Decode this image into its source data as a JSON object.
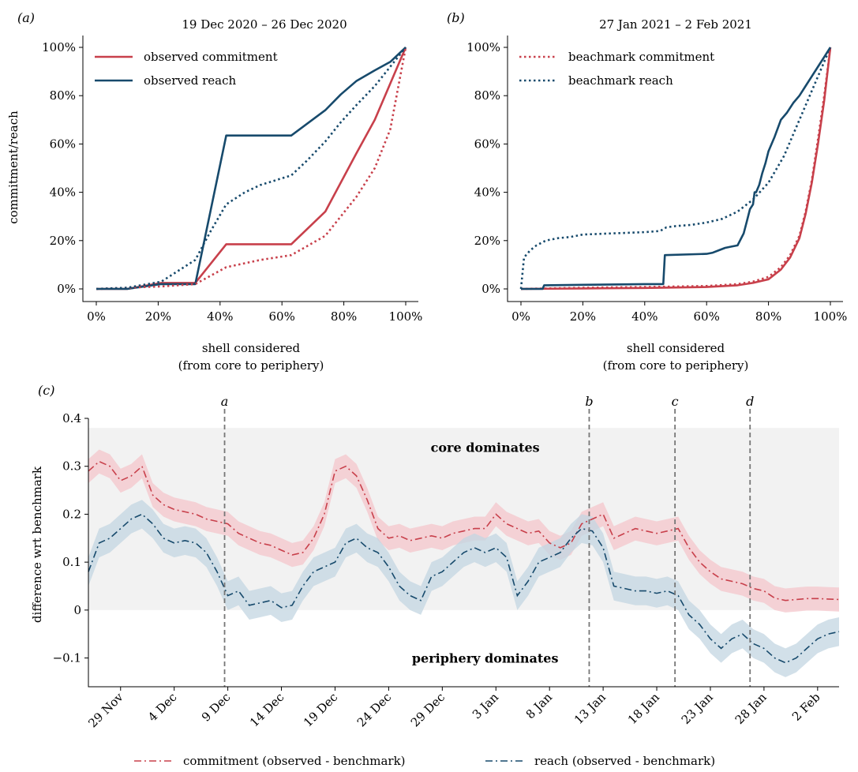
{
  "colors": {
    "commitment": "#c8404b",
    "reach": "#174a6c",
    "commitment_band": "#f4c6cb",
    "reach_band": "#c3d5e2",
    "shade": "#f2f2f2",
    "vline": "#777777"
  },
  "chart_data": [
    {
      "id": "a",
      "type": "line",
      "panel_label": "(a)",
      "title": "19 Dec 2020 – 26 Dec 2020",
      "xlabel": [
        "shell considered",
        "(from core to periphery)"
      ],
      "ylabel": "commitment/reach",
      "xlim": [
        0,
        100
      ],
      "ylim": [
        0,
        100
      ],
      "xticks": [
        0,
        20,
        40,
        60,
        80,
        100
      ],
      "xtick_labels": [
        "0%",
        "20%",
        "40%",
        "60%",
        "80%",
        "100%"
      ],
      "yticks": [
        0,
        20,
        40,
        60,
        80,
        100
      ],
      "ytick_labels": [
        "0%",
        "20%",
        "40%",
        "60%",
        "80%",
        "100%"
      ],
      "legend_position": "top-left",
      "series": [
        {
          "name": "observed commitment",
          "color_key": "commitment",
          "style": "solid",
          "in_legend": true,
          "x": [
            0,
            10,
            21,
            32,
            42,
            53,
            63,
            74,
            84,
            90,
            95,
            100
          ],
          "y": [
            0,
            0,
            2.5,
            2.5,
            18.5,
            18.5,
            18.5,
            32,
            56,
            70,
            85,
            100
          ]
        },
        {
          "name": "observed reach",
          "color_key": "reach",
          "style": "solid",
          "in_legend": true,
          "x": [
            0,
            10,
            21,
            32,
            42,
            53,
            63,
            74,
            79,
            84,
            90,
            95,
            100
          ],
          "y": [
            0,
            0,
            2,
            2,
            63.5,
            63.5,
            63.5,
            74,
            80.5,
            86,
            90.5,
            94,
            100
          ]
        },
        {
          "name": "benchmark commitment",
          "color_key": "commitment",
          "style": "dotted",
          "in_legend": false,
          "x": [
            0,
            10,
            21,
            32,
            42,
            53,
            63,
            74,
            84,
            90,
            95,
            100
          ],
          "y": [
            0,
            0.5,
            1,
            2,
            9,
            12,
            14,
            22,
            38,
            50,
            66,
            100
          ]
        },
        {
          "name": "benchmark reach",
          "color_key": "reach",
          "style": "dotted",
          "in_legend": false,
          "x": [
            0,
            10,
            21,
            32,
            37,
            42,
            48,
            53,
            58,
            63,
            68,
            74,
            79,
            84,
            90,
            95,
            100
          ],
          "y": [
            0,
            0.5,
            3,
            12,
            24,
            35,
            40,
            43,
            45,
            47,
            53,
            61,
            69,
            76,
            84,
            92,
            100
          ]
        }
      ]
    },
    {
      "id": "b",
      "type": "line",
      "panel_label": "(b)",
      "title": "27 Jan 2021 – 2 Feb 2021",
      "xlabel": [
        "shell considered",
        "(from core to periphery)"
      ],
      "xlim": [
        0,
        100
      ],
      "ylim": [
        0,
        100
      ],
      "xticks": [
        0,
        20,
        40,
        60,
        80,
        100
      ],
      "xtick_labels": [
        "0%",
        "20%",
        "40%",
        "60%",
        "80%",
        "100%"
      ],
      "yticks": [
        0,
        20,
        40,
        60,
        80,
        100
      ],
      "ytick_labels": [
        "0%",
        "20%",
        "40%",
        "60%",
        "80%",
        "100%"
      ],
      "legend_position": "top-left",
      "series": [
        {
          "name": "beachmark commitment",
          "color_key": "commitment",
          "style": "dotted",
          "in_legend": true,
          "x": [
            0,
            20,
            40,
            60,
            70,
            75,
            80,
            84,
            87,
            90,
            92,
            94,
            96,
            98,
            100
          ],
          "y": [
            0,
            0.5,
            0.8,
            1.2,
            2,
            3,
            5,
            9,
            14,
            22,
            32,
            45,
            62,
            80,
            100
          ]
        },
        {
          "name": "beachmark reach",
          "color_key": "reach",
          "style": "dotted",
          "in_legend": true,
          "x": [
            0,
            1,
            3,
            5,
            8,
            12,
            16,
            20,
            30,
            40,
            45,
            47,
            50,
            55,
            60,
            65,
            70,
            75,
            80,
            85,
            90,
            95,
            100
          ],
          "y": [
            0,
            13,
            16,
            18,
            20,
            21,
            21.5,
            22.5,
            23,
            23.5,
            24,
            25.5,
            26,
            26.5,
            27.5,
            29,
            32,
            37,
            44,
            55,
            70,
            85,
            100
          ]
        },
        {
          "name": "observed commitment",
          "color_key": "commitment",
          "style": "solid",
          "in_legend": false,
          "x": [
            0,
            20,
            40,
            60,
            70,
            75,
            80,
            84,
            87,
            90,
            92,
            94,
            96,
            98,
            100
          ],
          "y": [
            0,
            0.2,
            0.4,
            0.8,
            1.5,
            2.5,
            4,
            8,
            13,
            21,
            31,
            44,
            60,
            78,
            100
          ]
        },
        {
          "name": "observed reach",
          "color_key": "reach",
          "style": "solid",
          "in_legend": false,
          "x": [
            0,
            7,
            7.5,
            20,
            40,
            46,
            46.5,
            60,
            62,
            64,
            66,
            68,
            70,
            72,
            73,
            74,
            75,
            75.5,
            76,
            77,
            78,
            79,
            80,
            82,
            84,
            86,
            88,
            90,
            92,
            94,
            96,
            98,
            100
          ],
          "y": [
            0,
            0,
            1.5,
            1.7,
            2,
            2,
            14,
            14.5,
            15,
            16,
            17,
            17.5,
            18,
            23,
            28,
            33,
            35,
            40,
            40,
            43,
            48,
            52,
            57,
            63,
            70,
            73,
            77,
            80,
            84,
            88,
            92,
            96,
            100
          ]
        }
      ]
    },
    {
      "id": "c",
      "type": "line",
      "panel_label": "(c)",
      "ylabel": "difference wrt benchmark",
      "xlim": [
        -3,
        67
      ],
      "ylim": [
        -0.16,
        0.4
      ],
      "yticks": [
        -0.1,
        0,
        0.1,
        0.2,
        0.3,
        0.4
      ],
      "ytick_labels": [
        "−0.1",
        "0",
        "0.1",
        "0.2",
        "0.3",
        "0.4"
      ],
      "xticks": [
        0,
        5,
        10,
        15,
        20,
        25,
        30,
        35,
        40,
        45,
        50,
        55,
        60,
        65
      ],
      "xtick_labels": [
        "29 Nov",
        "4 Dec",
        "9 Dec",
        "14 Dec",
        "19 Dec",
        "24 Dec",
        "29 Dec",
        "3 Jan",
        "8 Jan",
        "13 Jan",
        "18 Jan",
        "23 Jan",
        "28 Jan",
        "2 Feb"
      ],
      "shaded_region": {
        "y0": 0,
        "y1": 0.38
      },
      "annotations": [
        {
          "text": "core dominates",
          "x": 34,
          "y": 0.33
        },
        {
          "text": "periphery dominates",
          "x": 34,
          "y": -0.11
        }
      ],
      "vlines": [
        {
          "label": "a",
          "x": 9.7
        },
        {
          "label": "b",
          "x": 43.7
        },
        {
          "label": "c",
          "x": 51.7
        },
        {
          "label": "d",
          "x": 58.7
        }
      ],
      "series": [
        {
          "name": "commitment (observed - benchmark)",
          "color_key": "commitment",
          "band_key": "commitment_band",
          "style": "dashdot",
          "band": 0.025,
          "x": [
            -3,
            -2,
            -1,
            0,
            1,
            2,
            3,
            4,
            5,
            6,
            7,
            8,
            9,
            10,
            11,
            12,
            13,
            14,
            15,
            16,
            17,
            18,
            19,
            20,
            21,
            22,
            23,
            24,
            25,
            26,
            27,
            28,
            29,
            30,
            31,
            32,
            33,
            34,
            35,
            36,
            37,
            38,
            39,
            40,
            41,
            42,
            43,
            44,
            45,
            46,
            47,
            48,
            49,
            50,
            51,
            52,
            53,
            54,
            55,
            56,
            57,
            58,
            59,
            60,
            61,
            62,
            63,
            64,
            65,
            66,
            67
          ],
          "y": [
            0.29,
            0.31,
            0.3,
            0.27,
            0.28,
            0.3,
            0.24,
            0.22,
            0.21,
            0.205,
            0.2,
            0.19,
            0.185,
            0.18,
            0.16,
            0.15,
            0.14,
            0.135,
            0.125,
            0.115,
            0.12,
            0.15,
            0.2,
            0.29,
            0.3,
            0.28,
            0.23,
            0.17,
            0.15,
            0.155,
            0.145,
            0.15,
            0.155,
            0.15,
            0.16,
            0.165,
            0.17,
            0.17,
            0.2,
            0.18,
            0.17,
            0.16,
            0.165,
            0.14,
            0.13,
            0.14,
            0.18,
            0.19,
            0.2,
            0.15,
            0.16,
            0.17,
            0.165,
            0.16,
            0.165,
            0.17,
            0.13,
            0.1,
            0.08,
            0.065,
            0.06,
            0.055,
            0.045,
            0.04,
            0.025,
            0.02,
            0.022,
            0.024,
            0.024,
            0.023,
            0.022
          ]
        },
        {
          "name": "reach (observed - benchmark)",
          "color_key": "reach",
          "band_key": "reach_band",
          "style": "dashdot",
          "band": 0.03,
          "x": [
            -3,
            -2,
            -1,
            0,
            1,
            2,
            3,
            4,
            5,
            6,
            7,
            8,
            9,
            10,
            11,
            12,
            13,
            14,
            15,
            16,
            17,
            18,
            19,
            20,
            21,
            22,
            23,
            24,
            25,
            26,
            27,
            28,
            29,
            30,
            31,
            32,
            33,
            34,
            35,
            36,
            37,
            38,
            39,
            40,
            41,
            42,
            43,
            44,
            45,
            46,
            47,
            48,
            49,
            50,
            51,
            52,
            53,
            54,
            55,
            56,
            57,
            58,
            59,
            60,
            61,
            62,
            63,
            64,
            65,
            66,
            67
          ],
          "y": [
            0.08,
            0.14,
            0.15,
            0.17,
            0.19,
            0.2,
            0.18,
            0.15,
            0.14,
            0.145,
            0.14,
            0.12,
            0.08,
            0.03,
            0.04,
            0.01,
            0.015,
            0.02,
            0.005,
            0.01,
            0.05,
            0.08,
            0.09,
            0.1,
            0.14,
            0.15,
            0.13,
            0.12,
            0.09,
            0.05,
            0.03,
            0.02,
            0.07,
            0.08,
            0.1,
            0.12,
            0.13,
            0.12,
            0.13,
            0.11,
            0.03,
            0.06,
            0.1,
            0.11,
            0.12,
            0.15,
            0.17,
            0.165,
            0.13,
            0.05,
            0.045,
            0.04,
            0.04,
            0.035,
            0.04,
            0.03,
            -0.01,
            -0.03,
            -0.06,
            -0.08,
            -0.06,
            -0.05,
            -0.07,
            -0.08,
            -0.1,
            -0.11,
            -0.1,
            -0.08,
            -0.06,
            -0.05,
            -0.045
          ]
        }
      ],
      "legend_position": "bottom-center"
    }
  ]
}
